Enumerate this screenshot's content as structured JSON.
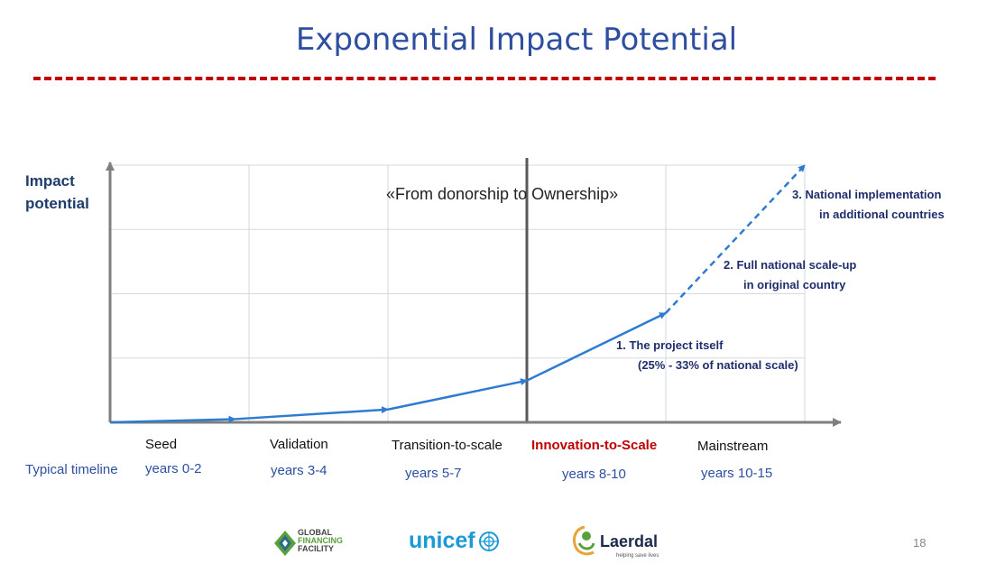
{
  "slide": {
    "title": "Exponential Impact Potential",
    "quote": "«From donorship to Ownership»",
    "page_number": "18",
    "colors": {
      "title": "#2e4fa0",
      "rule": "#c00000",
      "line": "#2e7bd1",
      "highlight": "#c00000"
    }
  },
  "annotations": {
    "a1_line1": "1.  The project itself",
    "a1_line2": "(25% - 33% of national scale)",
    "a2_line1": "2.  Full national scale-up",
    "a2_line2": "in original country",
    "a3_line1": "3.     National implementation",
    "a3_line2": "in additional countries"
  },
  "timeline": {
    "label": "Typical timeline",
    "stages": [
      {
        "name": "Seed",
        "years": "years 0-2",
        "highlight": false
      },
      {
        "name": "Validation",
        "years": "years 3-4",
        "highlight": false
      },
      {
        "name": "Transition-to-scale",
        "years": "years 5-7",
        "highlight": false
      },
      {
        "name": "Innovation-to-Scale",
        "years": "years 8-10",
        "highlight": true
      },
      {
        "name": "Mainstream",
        "years": "years 10-15",
        "highlight": false
      }
    ]
  },
  "chart_data": {
    "type": "line",
    "ylabel_line1": "Impact",
    "ylabel_line2": "potential",
    "xlim": [
      0,
      5
    ],
    "ylim": [
      0,
      4
    ],
    "grid": true,
    "divider_x": 3,
    "series": [
      {
        "style": "solid",
        "points": [
          [
            0,
            0
          ],
          [
            0.9,
            0.05
          ],
          [
            2,
            0.2
          ],
          [
            3,
            0.65
          ],
          [
            4,
            1.7
          ]
        ]
      },
      {
        "style": "dashed",
        "points": [
          [
            4,
            1.7
          ],
          [
            5,
            4.0
          ]
        ]
      }
    ]
  },
  "logos": {
    "gff_line1": "GLOBAL",
    "gff_line2": "FINANCING",
    "gff_line3": "FACILITY",
    "unicef": "unicef",
    "laerdal": "Laerdal",
    "laerdal_tagline": "helping save lives"
  }
}
